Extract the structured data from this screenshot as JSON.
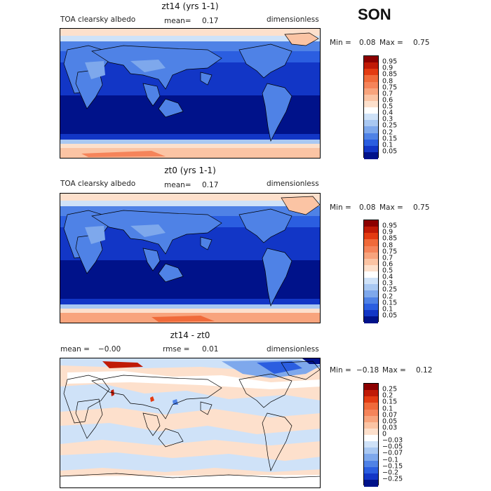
{
  "season": "SON",
  "chart_data": [
    {
      "type": "heatmap",
      "title": "zt14 (yrs 1-1)",
      "field_label": "TOA clearsky albedo",
      "mean_label": "mean=",
      "mean_value": "0.17",
      "units": "dimensionless",
      "min_label": "Min =",
      "min_value": "0.08",
      "max_label": "Max =",
      "max_value": "0.75",
      "colorbar_levels": [
        "0.95",
        "0.9",
        "0.85",
        "0.8",
        "0.75",
        "0.7",
        "0.6",
        "0.5",
        "0.4",
        "0.3",
        "0.25",
        "0.2",
        "0.15",
        "0.1",
        "0.05"
      ],
      "colorbar_colors": [
        "#8c0000",
        "#c01a06",
        "#e33b12",
        "#f06a3a",
        "#f5845a",
        "#f8a47d",
        "#fbc4a4",
        "#fde0cc",
        "#ffffff",
        "#cfe2f8",
        "#a9c8f2",
        "#7ea8ec",
        "#4f82e6",
        "#2b5ee0",
        "#1236c6",
        "#00128a"
      ]
    },
    {
      "type": "heatmap",
      "title": "zt0 (yrs 1-1)",
      "field_label": "TOA clearsky albedo",
      "mean_label": "mean=",
      "mean_value": "0.17",
      "units": "dimensionless",
      "min_label": "Min =",
      "min_value": "0.08",
      "max_label": "Max =",
      "max_value": "0.75",
      "colorbar_levels": [
        "0.95",
        "0.9",
        "0.85",
        "0.8",
        "0.75",
        "0.7",
        "0.6",
        "0.5",
        "0.4",
        "0.3",
        "0.25",
        "0.2",
        "0.15",
        "0.1",
        "0.05"
      ],
      "colorbar_colors": [
        "#8c0000",
        "#c01a06",
        "#e33b12",
        "#f06a3a",
        "#f5845a",
        "#f8a47d",
        "#fbc4a4",
        "#fde0cc",
        "#ffffff",
        "#cfe2f8",
        "#a9c8f2",
        "#7ea8ec",
        "#4f82e6",
        "#2b5ee0",
        "#1236c6",
        "#00128a"
      ]
    },
    {
      "type": "heatmap",
      "title": "zt14 - zt0",
      "mean_label": "mean =",
      "mean_value": "−0.00",
      "rmse_label": "rmse =",
      "rmse_value": "0.01",
      "units": "dimensionless",
      "min_label": "Min =",
      "min_value": "−0.18",
      "max_label": "Max =",
      "max_value": "0.12",
      "colorbar_levels": [
        "0.25",
        "0.2",
        "0.15",
        "0.1",
        "0.07",
        "0.05",
        "0.03",
        "0",
        "−0.03",
        "−0.05",
        "−0.07",
        "−0.1",
        "−0.15",
        "−0.2",
        "−0.25"
      ],
      "colorbar_colors": [
        "#8c0000",
        "#c01a06",
        "#e33b12",
        "#f06a3a",
        "#f5845a",
        "#f8a47d",
        "#fbc4a4",
        "#fde0cc",
        "#ffffff",
        "#cfe2f8",
        "#a9c8f2",
        "#7ea8ec",
        "#4f82e6",
        "#2b5ee0",
        "#1236c6",
        "#00128a"
      ]
    }
  ]
}
